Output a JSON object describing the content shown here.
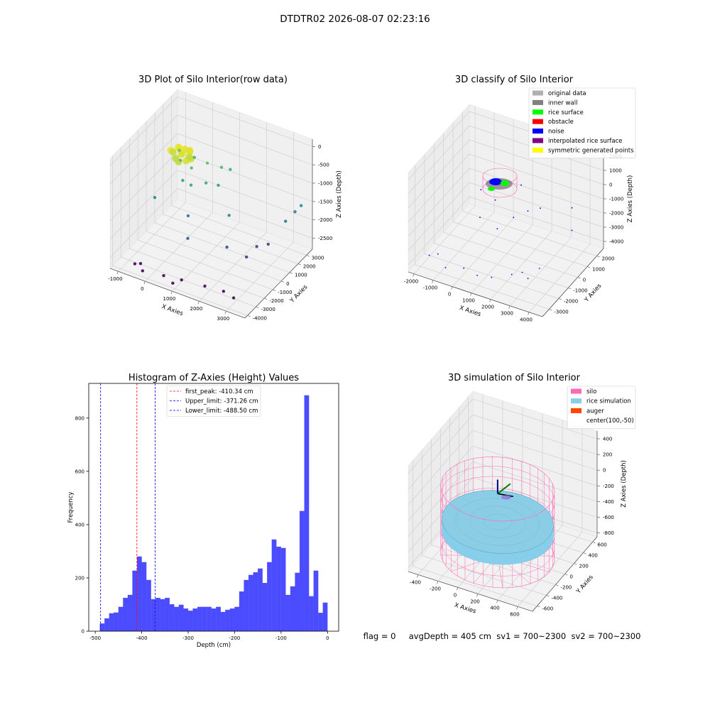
{
  "title": "DTDTR02 2026-08-07 02:23:16",
  "chart_data": [
    {
      "type": "scatter3d",
      "title": "3D Plot of Silo Interior(row data)",
      "xlabel": "X Axies",
      "ylabel": "Y Axies",
      "zlabel": "Z Axies (Depth)",
      "xlim": [
        -1300,
        3700
      ],
      "ylim": [
        -4300,
        3700
      ],
      "zlim": [
        -2800,
        200
      ],
      "xticks": [
        -1000,
        0,
        1000,
        2000,
        3000
      ],
      "yticks": [
        -4000,
        -3000,
        -2000,
        -1000,
        0,
        1000,
        2000,
        3000
      ],
      "zticks": [
        -2500,
        -2000,
        -1500,
        -1000,
        -500,
        0
      ],
      "colormap": "viridis",
      "points": {
        "x": [
          -300,
          -100,
          100,
          250,
          0,
          -200,
          300,
          150,
          -350,
          50,
          350,
          -150,
          200,
          0,
          -700,
          -500,
          -300,
          0,
          400,
          800,
          1000,
          600,
          -200,
          200,
          900,
          -800,
          500,
          1800,
          3400,
          3500,
          3300,
          800,
          2000,
          2700,
          3000,
          2600,
          -600,
          -450,
          -250,
          500,
          900,
          1100,
          1900,
          2500,
          3000
        ],
        "y": [
          -300,
          0,
          -200,
          200,
          400,
          300,
          -400,
          500,
          100,
          -500,
          0,
          -200,
          300,
          0,
          2000,
          1500,
          2500,
          1200,
          1800,
          2200,
          2600,
          1000,
          800,
          500,
          1500,
          -600,
          -800,
          -100,
          2600,
          3000,
          1800,
          -1800,
          -1000,
          300,
          700,
          -600,
          -3600,
          -3400,
          -3800,
          -3700,
          -3900,
          -3500,
          -3300,
          -3000,
          -3400
        ],
        "z": [
          -250,
          -200,
          -230,
          -260,
          -300,
          -280,
          -350,
          -320,
          -400,
          -420,
          -380,
          -450,
          -440,
          -350,
          -900,
          -1000,
          -1100,
          -1000,
          -900,
          -1000,
          -1100,
          -1200,
          -1300,
          -1250,
          -1300,
          -1600,
          -1700,
          -1500,
          -1600,
          -1500,
          -1700,
          -2000,
          -2100,
          -2200,
          -2150,
          -2300,
          -2650,
          -2650,
          -2700,
          -2650,
          -2700,
          -2650,
          -2650,
          -2700,
          -2650
        ]
      }
    },
    {
      "type": "scatter3d",
      "title": "3D classify of Silo Interior",
      "xlabel": "X Axies",
      "ylabel": "Y Axies",
      "zlabel": "Z Axies (Depth)",
      "xlim": [
        -2300,
        4700
      ],
      "ylim": [
        -3700,
        2700
      ],
      "zlim": [
        -4500,
        2500
      ],
      "xticks": [
        -2000,
        -1000,
        0,
        1000,
        2000,
        3000,
        4000
      ],
      "yticks": [
        -3000,
        -2000,
        -1000,
        0,
        1000,
        2000
      ],
      "zticks": [
        -4000,
        -3000,
        -2000,
        -1000,
        0,
        1000,
        2000
      ],
      "color": "#0000ff",
      "legend": [
        {
          "name": "original data",
          "color": "#b0b0b0"
        },
        {
          "name": "inner wall",
          "color": "#808080"
        },
        {
          "name": "rice surface",
          "color": "#00ff00"
        },
        {
          "name": "obstacle",
          "color": "#ff0000"
        },
        {
          "name": "noise",
          "color": "#0000ff"
        },
        {
          "name": "interpolated rice surface",
          "color": "#800080"
        },
        {
          "name": "symmetric generated points",
          "color": "#ffff00"
        }
      ],
      "points": {
        "x": [
          -1800,
          -1500,
          -800,
          0,
          800,
          1500,
          2200,
          2600,
          3000,
          1000,
          1500,
          2000,
          2500,
          500,
          3500,
          3800,
          -500,
          1000,
          0,
          3200
        ],
        "y": [
          -2500,
          -2200,
          -2800,
          -2500,
          -2700,
          -2600,
          -1900,
          -1600,
          -1800,
          -1000,
          -300,
          200,
          500,
          -200,
          1800,
          1200,
          300,
          1500,
          -800,
          -1000
        ],
        "z": [
          -4000,
          -4000,
          -4200,
          -4100,
          -4100,
          -4000,
          -4000,
          -3900,
          -4000,
          -2000,
          -1500,
          -1200,
          -1000,
          -800,
          -1500,
          -2500,
          -900,
          -800,
          -1800,
          -3800
        ]
      }
    },
    {
      "type": "histogram",
      "title": "Histogram of Z-Axies (Height) Values",
      "xlabel": "Depth (cm)",
      "ylabel": "Frequency",
      "color": "#4c4cff",
      "bins": [
        -490,
        -480,
        -470,
        -460,
        -450,
        -440,
        -430,
        -420,
        -410,
        -400,
        -390,
        -380,
        -370,
        -360,
        -350,
        -340,
        -330,
        -320,
        -310,
        -300,
        -290,
        -280,
        -270,
        -260,
        -250,
        -240,
        -230,
        -220,
        -210,
        -200,
        -190,
        -180,
        -170,
        -160,
        -150,
        -140,
        -130,
        -120,
        -110,
        -100,
        -90,
        -80,
        -70,
        -60,
        -50,
        -40,
        -30,
        -20,
        -10,
        0
      ],
      "counts": [
        29,
        48,
        67,
        70,
        91,
        125,
        136,
        227,
        280,
        259,
        192,
        120,
        125,
        120,
        125,
        101,
        91,
        99,
        85,
        77,
        85,
        91,
        91,
        91,
        85,
        91,
        72,
        80,
        85,
        91,
        149,
        192,
        211,
        221,
        235,
        181,
        259,
        344,
        317,
        312,
        136,
        168,
        219,
        451,
        885,
        131,
        227,
        69,
        107
      ],
      "xlim": [
        -514,
        24
      ],
      "ylim": [
        0,
        930
      ],
      "xticks": [
        -500,
        -400,
        -300,
        -200,
        -100,
        0
      ],
      "yticks": [
        0,
        200,
        400,
        600,
        800
      ],
      "vlines": [
        {
          "name": "first_peak: -410.34 cm",
          "value": -410.34,
          "color": "#ff0000"
        },
        {
          "name": "Upper_limit: -371.26 cm",
          "value": -371.26,
          "color": "#0000ff"
        },
        {
          "name": "Lower_limit: -488.50 cm",
          "value": -488.5,
          "color": "#0000ff"
        }
      ]
    },
    {
      "type": "surface3d",
      "title": "3D simulation of Silo Interior",
      "xlabel": "X Axies",
      "ylabel": "Y Axies",
      "zlabel": "Z Axies (Depth)",
      "xlim": [
        -500,
        750
      ],
      "ylim": [
        -700,
        700
      ],
      "zlim": [
        -850,
        500
      ],
      "xticks": [
        -400,
        -200,
        0,
        200,
        400,
        600
      ],
      "yticks": [
        -600,
        -400,
        -200,
        0,
        200,
        400,
        600
      ],
      "zticks": [
        -800,
        -600,
        -400,
        -200,
        0,
        200,
        400
      ],
      "legend": [
        {
          "name": "silo",
          "color": "#ff69b4"
        },
        {
          "name": "rice simulation",
          "color": "#87ceeb"
        },
        {
          "name": "auger",
          "color": "#ff4500"
        },
        {
          "name": "center(100,-50)"
        }
      ],
      "annotation": "flag = 0     avgDepth = 405 cm  sv1 = 700~2300  sv2 = 700~2300"
    }
  ]
}
